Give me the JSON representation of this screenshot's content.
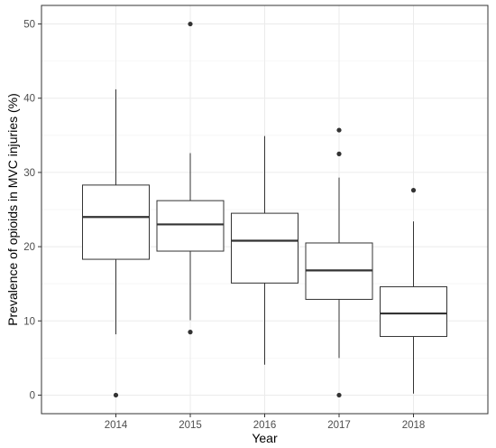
{
  "chart_data": {
    "type": "box",
    "xlabel": "Year",
    "ylabel": "Prevalence of opioids in MVC injuries (%)",
    "ylim": [
      -2.5,
      52.5
    ],
    "yticks": [
      0,
      10,
      20,
      30,
      40,
      50
    ],
    "grid": true,
    "categories": [
      "2014",
      "2015",
      "2016",
      "2017",
      "2018"
    ],
    "boxes": [
      {
        "category": "2014",
        "whisker_low": 8.2,
        "q1": 18.3,
        "median": 24.0,
        "q3": 28.3,
        "whisker_high": 41.2,
        "outliers": [
          0
        ]
      },
      {
        "category": "2015",
        "whisker_low": 10.1,
        "q1": 19.4,
        "median": 23.0,
        "q3": 26.2,
        "whisker_high": 32.6,
        "outliers": [
          8.5,
          50
        ]
      },
      {
        "category": "2016",
        "whisker_low": 4.1,
        "q1": 15.1,
        "median": 20.8,
        "q3": 24.5,
        "whisker_high": 34.9,
        "outliers": []
      },
      {
        "category": "2017",
        "whisker_low": 5.0,
        "q1": 12.9,
        "median": 16.8,
        "q3": 20.5,
        "whisker_high": 29.3,
        "outliers": [
          0,
          32.5,
          35.7
        ]
      },
      {
        "category": "2018",
        "whisker_low": 0.2,
        "q1": 7.9,
        "median": 11.0,
        "q3": 14.6,
        "whisker_high": 23.4,
        "outliers": [
          27.6
        ]
      }
    ],
    "colors": {
      "box_fill": "#ffffff",
      "box_stroke": "#333333",
      "grid_major": "#ebebeb",
      "grid_minor": "#f5f5f5",
      "panel_border": "#333333",
      "outlier": "#333333"
    }
  }
}
